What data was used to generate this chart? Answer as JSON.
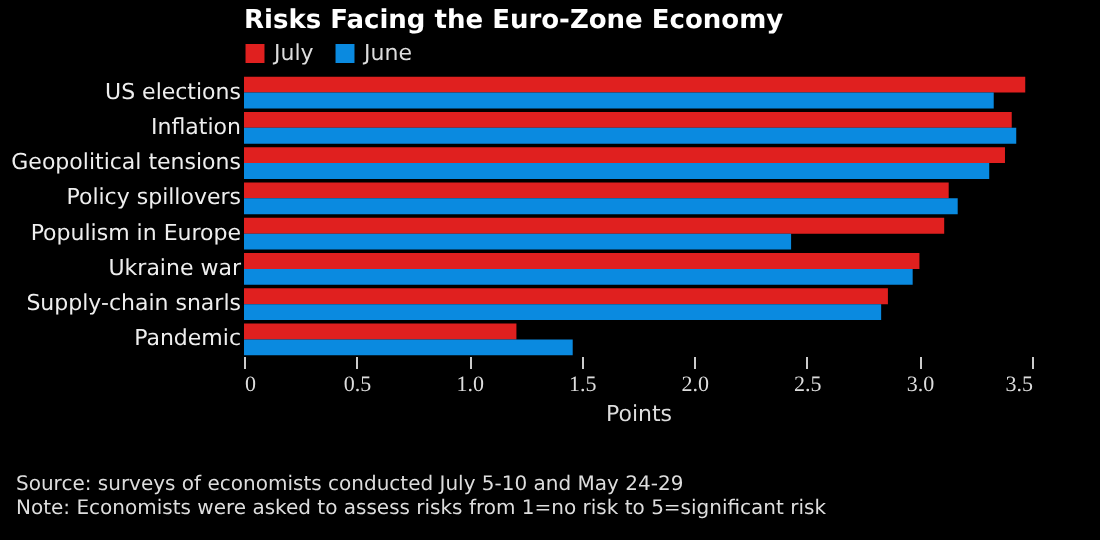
{
  "chart_data": {
    "type": "bar",
    "orientation": "horizontal",
    "title": "Risks Facing the Euro-Zone Economy",
    "xlabel": "Points",
    "categories": [
      "US elections",
      "Inflation",
      "Geopolitical tensions",
      "Policy spillovers",
      "Populism in Europe",
      "Ukraine war",
      "Supply-chain snarls",
      "Pandemic"
    ],
    "series": [
      {
        "name": "July",
        "color": "#e0201f",
        "values": [
          3.47,
          3.41,
          3.38,
          3.13,
          3.11,
          3.0,
          2.86,
          1.21
        ]
      },
      {
        "name": "June",
        "color": "#0a8ae0",
        "values": [
          3.33,
          3.43,
          3.31,
          3.17,
          2.43,
          2.97,
          2.83,
          1.46
        ]
      }
    ],
    "xlim": [
      0,
      3.5
    ],
    "xticks": [
      0,
      {
        "value": 0.5,
        "label": "0.5"
      },
      {
        "value": 1,
        "label": "1.0"
      },
      {
        "value": 1.5,
        "label": "1.5"
      },
      {
        "value": 2,
        "label": "2.0"
      },
      {
        "value": 2.5,
        "label": "2.5"
      },
      {
        "value": 3,
        "label": "3.0"
      },
      {
        "value": 3.5,
        "label": "3.5"
      }
    ],
    "grid": false,
    "legend": "top left",
    "annotations": [
      "Source: surveys of economists conducted July 5-10 and May 24-29",
      "Note: Economists were asked to assess risks from 1=no risk to 5=significant risk"
    ]
  }
}
